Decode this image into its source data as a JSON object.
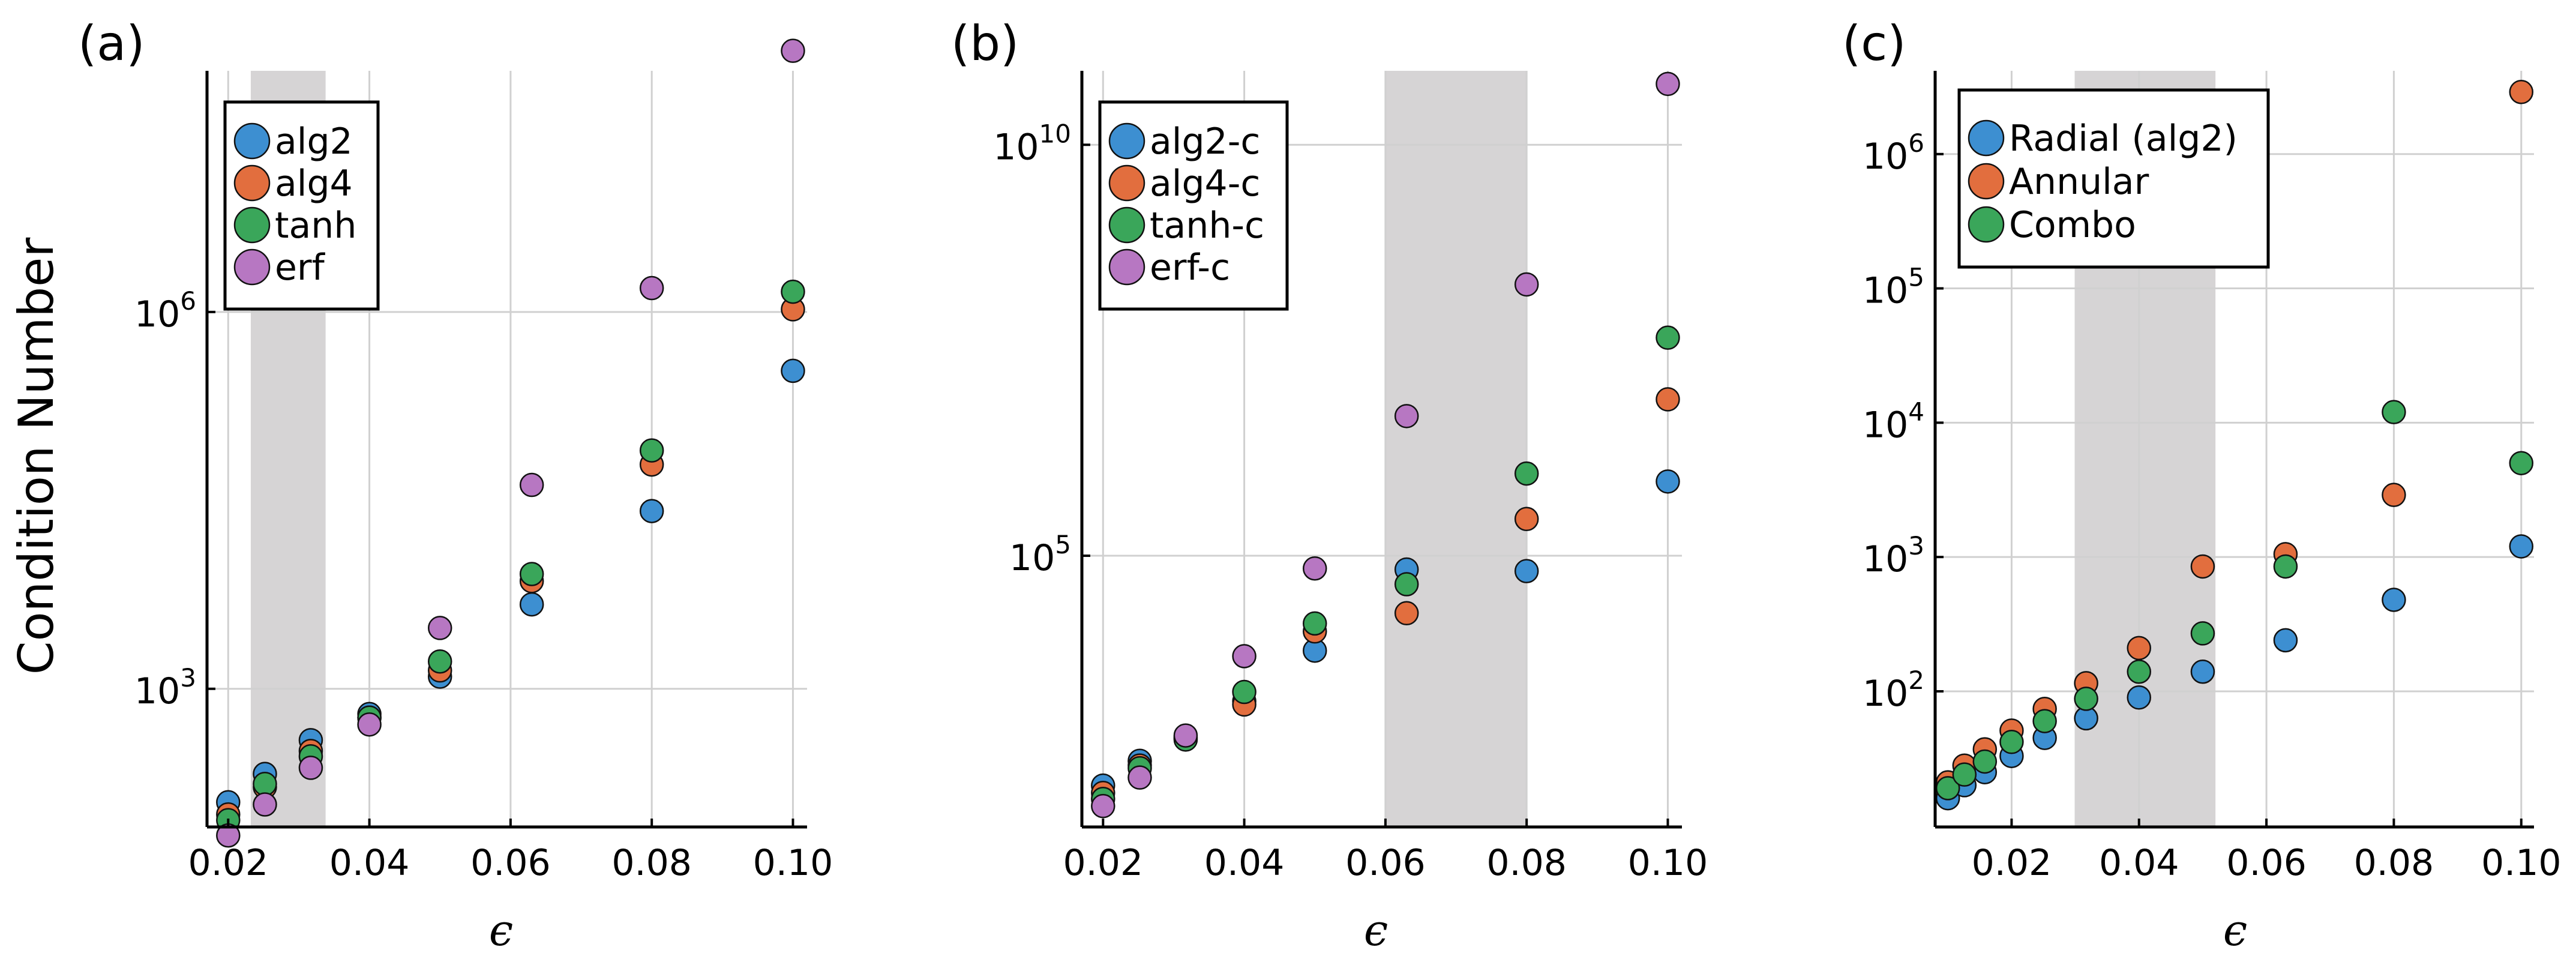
{
  "chart_data": [
    {
      "panel_label": "(a)",
      "type": "scatter",
      "ylabel": "Condition Number",
      "xlabel": "ϵ",
      "xscale": "linear",
      "yscale": "log",
      "xlim": [
        0.017,
        0.102
      ],
      "ylim_log10": [
        1.9,
        7.92
      ],
      "xticks": [
        0.02,
        0.04,
        0.06,
        0.08,
        0.1
      ],
      "xtick_labels": [
        "0.02",
        "0.04",
        "0.06",
        "0.08",
        "0.10"
      ],
      "yticks_log10": [
        3,
        6
      ],
      "ytick_labels": [
        {
          "base": "10",
          "exp": "3"
        },
        {
          "base": "10",
          "exp": "6"
        }
      ],
      "shaded_region": [
        0.0232,
        0.0338
      ],
      "legend_position": "top-left",
      "x": [
        0.02,
        0.0252,
        0.0317,
        0.04,
        0.05,
        0.063,
        0.08,
        0.1
      ],
      "series": [
        {
          "name": "alg2",
          "color": "#3d8fd1",
          "values": [
            125,
            210,
            390,
            630,
            1250,
            4700,
            26000,
            340000
          ]
        },
        {
          "name": "alg4",
          "color": "#e26e3e",
          "values": [
            100,
            165,
            320,
            590,
            1400,
            7200,
            61000,
            1050000
          ]
        },
        {
          "name": "tanh",
          "color": "#3aa65a",
          "values": [
            90,
            175,
            290,
            590,
            1650,
            8200,
            79000,
            1450000
          ]
        },
        {
          "name": "erf",
          "color": "#b777c2",
          "values": [
            68,
            120,
            235,
            520,
            3050,
            42000,
            1550000,
            120000000
          ]
        }
      ]
    },
    {
      "panel_label": "(b)",
      "type": "scatter",
      "ylabel": "",
      "xlabel": "ϵ",
      "xscale": "linear",
      "yscale": "log",
      "xlim": [
        0.017,
        0.102
      ],
      "ylim_log10": [
        1.7,
        10.9
      ],
      "xticks": [
        0.02,
        0.04,
        0.06,
        0.08,
        0.1
      ],
      "xtick_labels": [
        "0.02",
        "0.04",
        "0.06",
        "0.08",
        "0.10"
      ],
      "yticks_log10": [
        5,
        10
      ],
      "ytick_labels": [
        {
          "base": "10",
          "exp": "5"
        },
        {
          "base": "10",
          "exp": "10"
        }
      ],
      "shaded_region": [
        0.06,
        0.08
      ],
      "legend_position": "top-left",
      "x": [
        0.02,
        0.0252,
        0.0317,
        0.04,
        0.05,
        0.063,
        0.08,
        0.1
      ],
      "series": [
        {
          "name": "alg2-c",
          "color": "#3d8fd1",
          "values": [
            160,
            320,
            620,
            1700,
            7000,
            68000,
            65000,
            800000
          ]
        },
        {
          "name": "alg4-c",
          "color": "#e26e3e",
          "values": [
            130,
            280,
            600,
            1550,
            12000,
            20000,
            280000,
            8000000
          ]
        },
        {
          "name": "tanh-c",
          "color": "#3aa65a",
          "values": [
            110,
            260,
            580,
            2200,
            15000,
            45000,
            1000000,
            45000000
          ]
        },
        {
          "name": "erf-c",
          "color": "#b777c2",
          "values": [
            90,
            200,
            650,
            6000,
            70000,
            5000000,
            200000000,
            55000000000
          ]
        }
      ]
    },
    {
      "panel_label": "(c)",
      "type": "scatter",
      "ylabel": "",
      "xlabel": "ϵ",
      "xscale": "linear",
      "yscale": "log",
      "xlim": [
        0.008,
        0.102
      ],
      "ylim_log10": [
        0.99,
        6.62
      ],
      "xticks": [
        0.02,
        0.04,
        0.06,
        0.08,
        0.1
      ],
      "xtick_labels": [
        "0.02",
        "0.04",
        "0.06",
        "0.08",
        "0.10"
      ],
      "yticks_log10": [
        2,
        3,
        4,
        5,
        6
      ],
      "ytick_labels": [
        {
          "base": "10",
          "exp": "2"
        },
        {
          "base": "10",
          "exp": "3"
        },
        {
          "base": "10",
          "exp": "4"
        },
        {
          "base": "10",
          "exp": "5"
        },
        {
          "base": "10",
          "exp": "6"
        }
      ],
      "shaded_region": [
        0.0299,
        0.052
      ],
      "legend_position": "top-left",
      "x": [
        0.01,
        0.0126,
        0.0158,
        0.02,
        0.0252,
        0.0317,
        0.04,
        0.05,
        0.063,
        0.08,
        0.1
      ],
      "series": [
        {
          "name": "Radial (alg2)",
          "color": "#3d8fd1",
          "values": [
            16,
            20,
            25,
            33,
            45,
            63,
            90,
            140,
            240,
            480,
            1200
          ]
        },
        {
          "name": "Annular",
          "color": "#e26e3e",
          "values": [
            21,
            28,
            37,
            51,
            74,
            115,
            210,
            850,
            1050,
            2900,
            2900000
          ]
        },
        {
          "name": "Combo",
          "color": "#3aa65a",
          "values": [
            19,
            24,
            30,
            42,
            60,
            88,
            140,
            270,
            850,
            12000,
            5000
          ]
        }
      ]
    }
  ]
}
